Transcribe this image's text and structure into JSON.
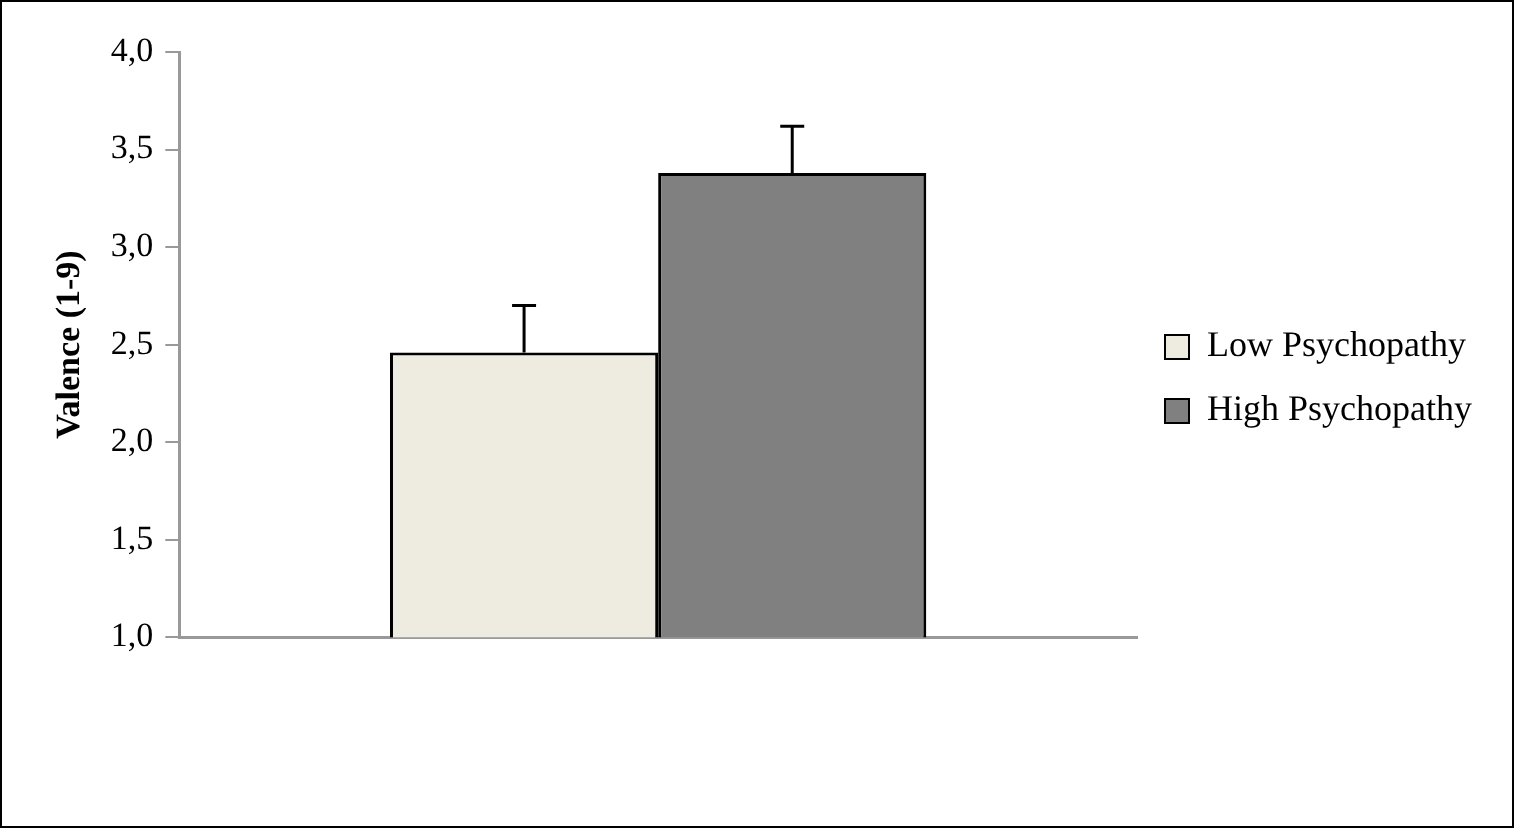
{
  "chart_data": {
    "type": "bar",
    "ylabel": "Valence (1-9)",
    "categories": [
      null
    ],
    "series": [
      {
        "name": "Low Psychopathy",
        "color": "#eeebe0",
        "values": [
          2.46
        ],
        "errors": [
          0.24
        ]
      },
      {
        "name": "High Psychopathy",
        "color": "#808080",
        "values": [
          3.38
        ],
        "errors": [
          0.24
        ]
      }
    ],
    "ylim": [
      1,
      4
    ],
    "yticks": [
      {
        "value": 1,
        "label": "1,0"
      },
      {
        "value": 1.5,
        "label": "1,5"
      },
      {
        "value": 2,
        "label": "2,0"
      },
      {
        "value": 2.5,
        "label": "2,5"
      },
      {
        "value": 3,
        "label": "3,0"
      },
      {
        "value": 3.5,
        "label": "3,5"
      },
      {
        "value": 4,
        "label": "4,0"
      }
    ],
    "grid": false,
    "legend": "right"
  }
}
